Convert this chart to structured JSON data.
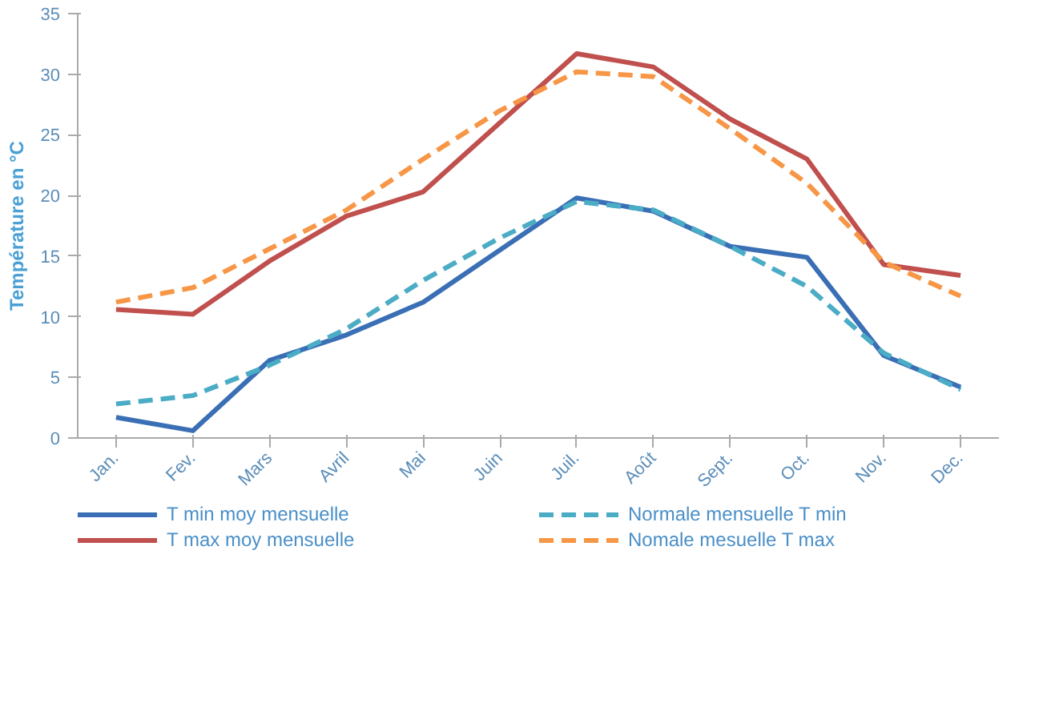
{
  "chart_data": {
    "type": "line",
    "ylabel": "Température en °C",
    "categories": [
      "Jan.",
      "Fev.",
      "Mars",
      "Avril",
      "Mai",
      "Juin",
      "Juil.",
      "Août",
      "Sept.",
      "Oct.",
      "Nov.",
      "Dec."
    ],
    "ylim": [
      0,
      35
    ],
    "yticks": [
      0,
      5,
      10,
      15,
      20,
      25,
      30,
      35
    ],
    "grid": false,
    "legend": "bottom",
    "series": [
      {
        "name": "T min moy mensuelle",
        "color": "#3a6fb5",
        "line_style": "solid",
        "values": [
          1.7,
          0.6,
          6.4,
          8.5,
          11.2,
          15.5,
          19.8,
          18.7,
          15.8,
          14.9,
          6.8,
          4.2
        ]
      },
      {
        "name": "T max moy mensuelle",
        "color": "#c0504d",
        "line_style": "solid",
        "values": [
          10.6,
          10.2,
          14.6,
          18.3,
          20.3,
          26.0,
          31.7,
          30.6,
          26.3,
          23.0,
          14.3,
          13.4
        ]
      },
      {
        "name": "Normale mensuelle T min",
        "color": "#4bacc6",
        "line_style": "dashed",
        "values": [
          2.8,
          3.5,
          6.0,
          9.0,
          13.0,
          16.5,
          19.5,
          18.8,
          15.8,
          12.5,
          7.0,
          4.0
        ]
      },
      {
        "name": "Nomale mesuelle T max",
        "color": "#f79646",
        "line_style": "dashed",
        "values": [
          11.2,
          12.4,
          15.6,
          18.8,
          23.0,
          27.0,
          30.2,
          29.8,
          25.5,
          21.0,
          14.5,
          11.7
        ]
      }
    ]
  }
}
